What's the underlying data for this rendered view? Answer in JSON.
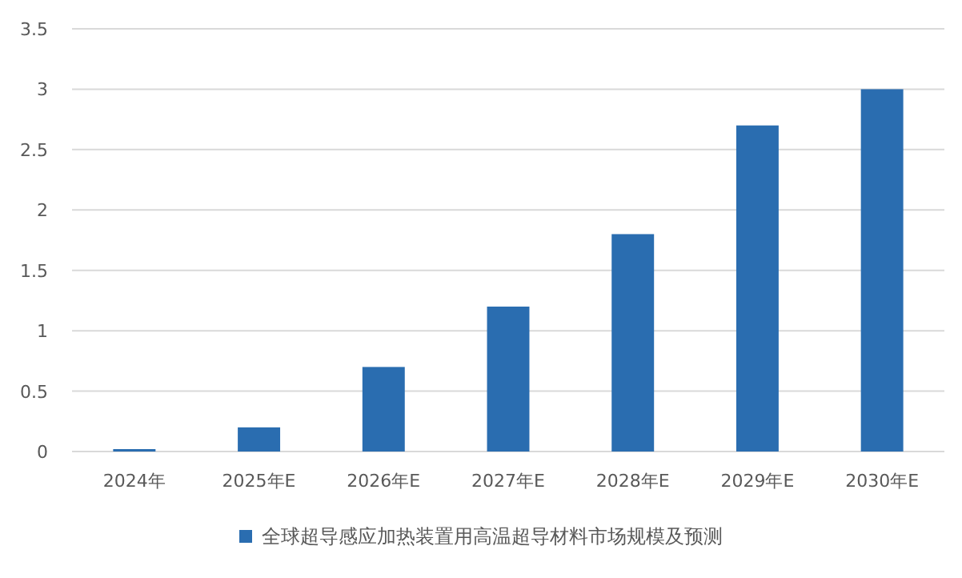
{
  "chart_data": {
    "type": "bar",
    "categories": [
      "2024年",
      "2025年E",
      "2026年E",
      "2027年E",
      "2028年E",
      "2029年E",
      "2030年E"
    ],
    "series": [
      {
        "name": "全球超导感应加热装置用高温超导材料市场规模及预测",
        "color": "#2a6db0",
        "values": [
          0.02,
          0.2,
          0.7,
          1.2,
          1.8,
          2.7,
          3.0
        ]
      }
    ],
    "ylim": [
      0,
      3.5
    ],
    "yticks": [
      0,
      0.5,
      1,
      1.5,
      2,
      2.5,
      3,
      3.5
    ],
    "grid": "y",
    "legend": "bottom"
  }
}
